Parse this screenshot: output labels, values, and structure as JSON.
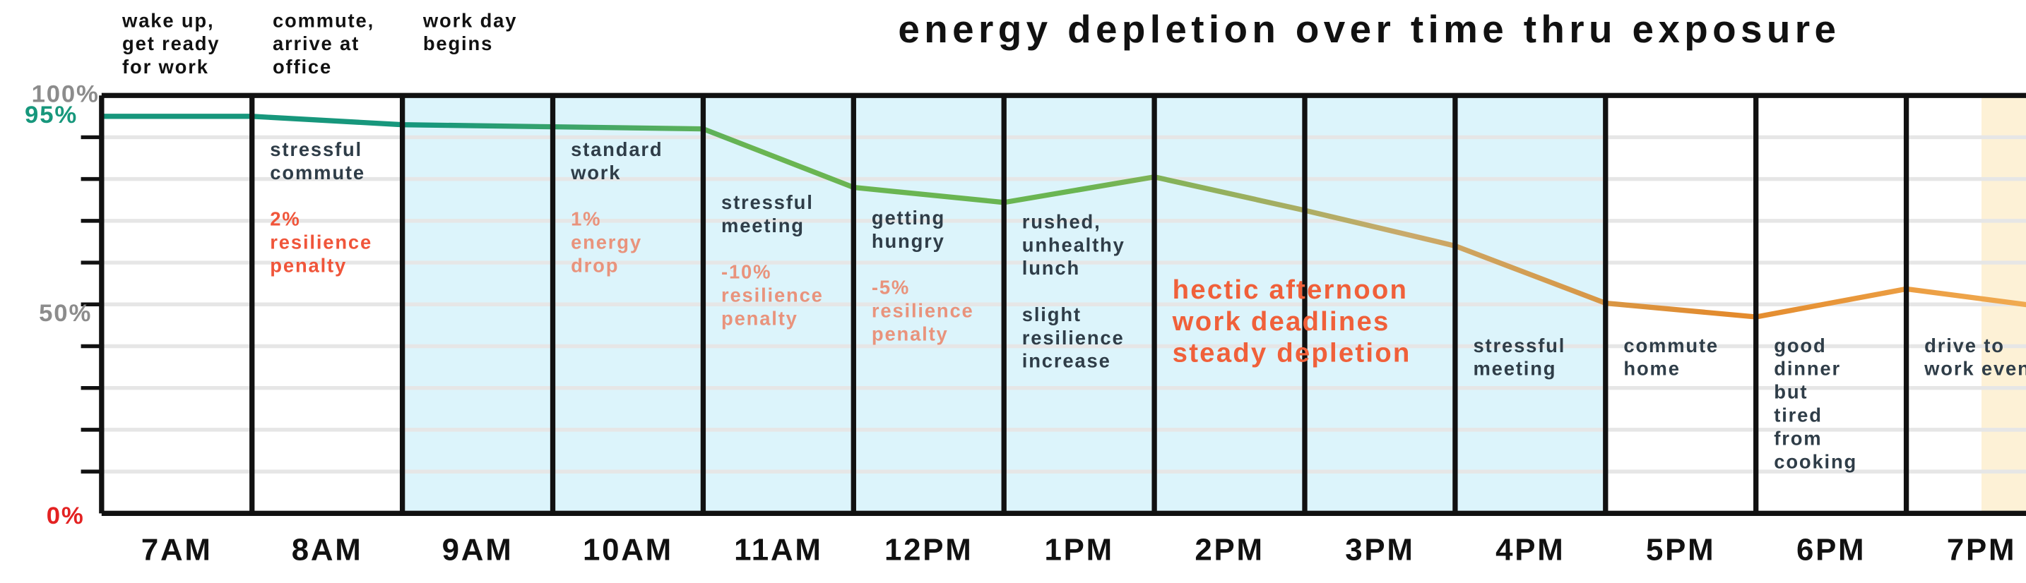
{
  "chart_data": {
    "type": "line",
    "title": "energy depletion over time thru exposure",
    "x": [
      7,
      8,
      9,
      10,
      11,
      12,
      13,
      14,
      15,
      16,
      17,
      18,
      19,
      20
    ],
    "values": [
      95,
      95,
      93,
      92.5,
      92,
      78,
      74.4,
      80.5,
      72.5,
      64,
      50.3,
      47,
      53.7,
      49
    ],
    "color_stops": [
      "#17977c",
      "#17977c",
      "#6ab552",
      "#6ab552",
      "#c9aa6c",
      "#e38a2c",
      "#f2ae55"
    ],
    "xlim": [
      7,
      20
    ],
    "xticks": [
      {
        "value": 7,
        "label": "7AM"
      },
      {
        "value": 8,
        "label": "8AM"
      },
      {
        "value": 9,
        "label": "9AM"
      },
      {
        "value": 10,
        "label": "10AM"
      },
      {
        "value": 11,
        "label": "11AM"
      },
      {
        "value": 12,
        "label": "12PM"
      },
      {
        "value": 13,
        "label": "1PM"
      },
      {
        "value": 14,
        "label": "2PM"
      },
      {
        "value": 15,
        "label": "3PM"
      },
      {
        "value": 16,
        "label": "4PM"
      },
      {
        "value": 17,
        "label": "5PM"
      },
      {
        "value": 18,
        "label": "6PM"
      },
      {
        "value": 19,
        "label": "7PM"
      }
    ],
    "ylim": [
      0,
      100
    ],
    "yticks": [
      {
        "value": 0,
        "label": "0%"
      },
      {
        "value": 50,
        "label": "50%"
      },
      {
        "value": 100,
        "label": "100%"
      }
    ],
    "ytick_colors": [
      "#e32222",
      "#8c8c8c",
      "#8c8c8c"
    ],
    "minor_yticks": [
      10,
      20,
      30,
      40,
      50,
      60,
      70,
      80,
      90
    ],
    "grid": true,
    "start_label": {
      "value": 95,
      "label": "95%",
      "color": "#17977c"
    },
    "shaded": [
      {
        "from": 9,
        "to": 17,
        "color": "#dcf4fb"
      },
      {
        "from": 19.5,
        "to": 20,
        "color": "#fdf1d6"
      }
    ],
    "top_notes": [
      {
        "hour": 7,
        "lines": [
          "wake up,",
          "get ready",
          "for work"
        ]
      },
      {
        "hour": 8,
        "lines": [
          "commute,",
          "arrive at",
          "office"
        ]
      },
      {
        "hour": 9,
        "lines": [
          "work day",
          "begins"
        ]
      }
    ],
    "notes": [
      {
        "hour": 8,
        "lines": [
          "stressful",
          "commute"
        ],
        "detail": [
          "2%",
          "resilience",
          "penalty"
        ],
        "detail_color": "#f0553a"
      },
      {
        "hour": 10,
        "lines": [
          "standard",
          "work"
        ],
        "detail": [
          "1%",
          "energy",
          "drop"
        ],
        "detail_color": "#e9937c"
      },
      {
        "hour": 11,
        "lines": [
          "stressful",
          "meeting"
        ],
        "detail": [
          "-10%",
          "resilience",
          "penalty"
        ],
        "detail_color": "#e9937c"
      },
      {
        "hour": 12,
        "lines": [
          "getting",
          "hungry"
        ],
        "detail": [
          "-5%",
          "resilience",
          "penalty"
        ],
        "detail_color": "#e9937c"
      },
      {
        "hour": 13,
        "lines": [
          "rushed,",
          "unhealthy",
          "lunch"
        ],
        "detail": [
          "slight",
          "resilience",
          "increase"
        ],
        "detail_color": "#2f3d48"
      },
      {
        "hour": 14,
        "lines": [
          "hectic afternoon",
          "work deadlines",
          "steady depletion"
        ],
        "emphasis": true,
        "color": "#f0603a"
      },
      {
        "hour": 16,
        "lines": [
          "stressful",
          "meeting"
        ]
      },
      {
        "hour": 17,
        "lines": [
          "commute",
          "home"
        ]
      },
      {
        "hour": 18,
        "lines": [
          "good",
          "dinner",
          "but",
          "tired",
          "from",
          "cooking"
        ]
      },
      {
        "hour": 19,
        "lines": [
          "drive to",
          "work event"
        ]
      }
    ]
  }
}
